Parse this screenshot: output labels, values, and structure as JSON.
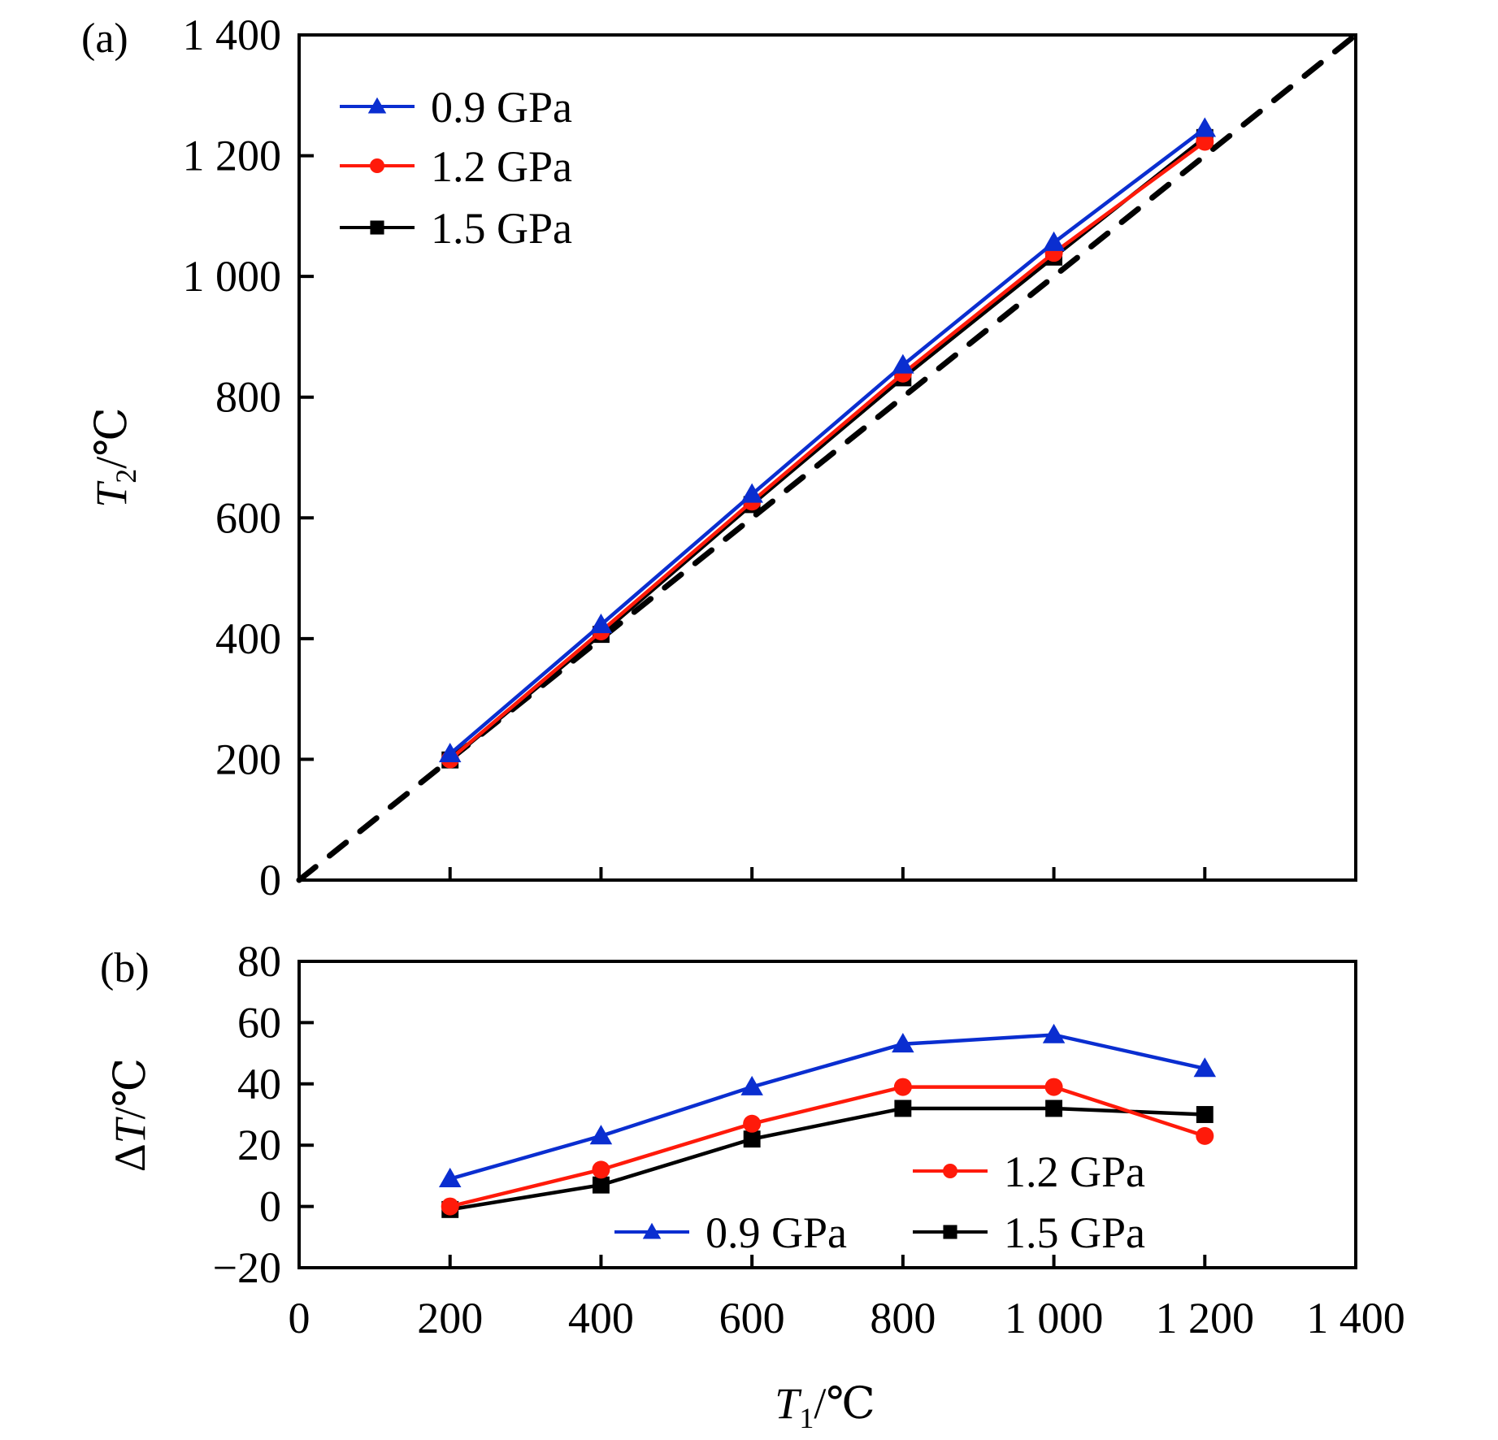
{
  "chart_data": [
    {
      "panel_label": "(a)",
      "type": "line",
      "title": "",
      "xlabel": {
        "var": "T",
        "sub": "1",
        "unit": "/℃"
      },
      "ylabel": {
        "var": "T",
        "sub": "2",
        "unit": "/℃"
      },
      "xlim": [
        0,
        1400
      ],
      "ylim": [
        0,
        1400
      ],
      "xticks": [
        200,
        400,
        600,
        800,
        1000,
        1200
      ],
      "yticks": [
        0,
        200,
        400,
        600,
        800,
        1000,
        1200,
        1400
      ],
      "ytick_labels": [
        "0",
        "200",
        "400",
        "600",
        "800",
        "1 000",
        "1 200",
        "1 400"
      ],
      "grid": false,
      "legend_position": "top-left",
      "reference_line": {
        "name": "y = x",
        "style": "dashed",
        "color": "#000000",
        "from": [
          0,
          0
        ],
        "to": [
          1400,
          1400
        ]
      },
      "x": [
        200,
        400,
        600,
        800,
        1000,
        1200
      ],
      "series": [
        {
          "name": "0.9 GPa",
          "marker": "triangle",
          "color": "#0a2ed0",
          "values": [
            209,
            423,
            639,
            853,
            1056,
            1245
          ]
        },
        {
          "name": "1.2 GPa",
          "marker": "circle",
          "color": "#ff1a0a",
          "values": [
            200,
            412,
            627,
            839,
            1039,
            1223
          ]
        },
        {
          "name": "1.5 GPa",
          "marker": "square",
          "color": "#000000",
          "values": [
            199,
            407,
            622,
            832,
            1032,
            1230
          ]
        }
      ]
    },
    {
      "panel_label": "(b)",
      "type": "line",
      "title": "",
      "xlabel": {
        "var": "T",
        "sub": "1",
        "unit": "/℃"
      },
      "ylabel": {
        "prefix": "Δ",
        "var": "T",
        "sub": "",
        "unit": "/℃"
      },
      "xlim": [
        0,
        1400
      ],
      "ylim": [
        -20,
        80
      ],
      "xticks": [
        0,
        200,
        400,
        600,
        800,
        1000,
        1200,
        1400
      ],
      "xtick_labels": [
        "0",
        "200",
        "400",
        "600",
        "800",
        "1 000",
        "1 200",
        "1 400"
      ],
      "yticks": [
        -20,
        0,
        20,
        40,
        60,
        80
      ],
      "ytick_labels": [
        "−20",
        "0",
        "20",
        "40",
        "60",
        "80"
      ],
      "grid": false,
      "legend_position": "bottom-right",
      "x": [
        200,
        400,
        600,
        800,
        1000,
        1200
      ],
      "series": [
        {
          "name": "0.9 GPa",
          "marker": "triangle",
          "color": "#0a2ed0",
          "values": [
            9,
            23,
            39,
            53,
            56,
            45
          ]
        },
        {
          "name": "1.2 GPa",
          "marker": "circle",
          "color": "#ff1a0a",
          "values": [
            0,
            12,
            27,
            39,
            39,
            23
          ]
        },
        {
          "name": "1.5 GPa",
          "marker": "square",
          "color": "#000000",
          "values": [
            -1,
            7,
            22,
            32,
            32,
            30
          ]
        }
      ]
    }
  ]
}
